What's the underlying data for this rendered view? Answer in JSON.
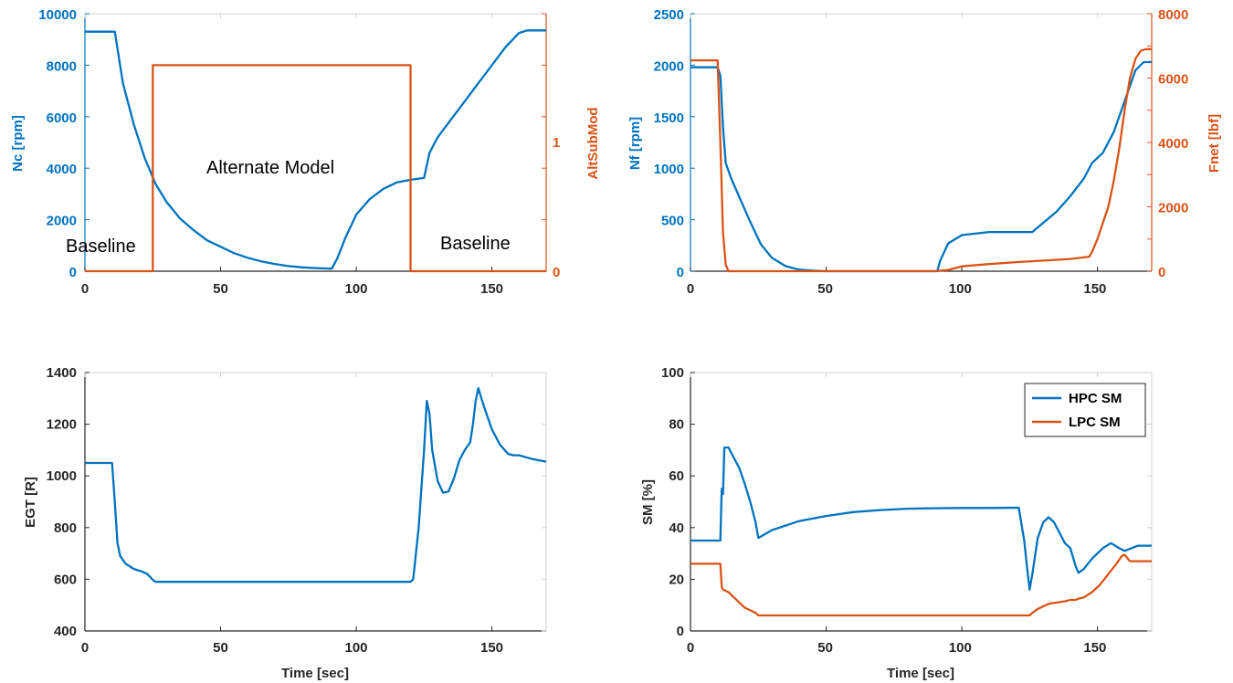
{
  "colors": {
    "blue": "#0072BD",
    "orange": "#D95319",
    "axis": "#262626",
    "box": "#D0D0D0"
  },
  "chart_data": [
    {
      "type": "line",
      "xlim": [
        0,
        170
      ],
      "xticks": [
        "0",
        "50",
        "100",
        "150"
      ],
      "ylim": [
        0,
        10000
      ],
      "yticks": [
        "0",
        "2000",
        "4000",
        "6000",
        "8000",
        "10000"
      ],
      "ylabel": "Nc [rpm]",
      "y2lim": [
        0,
        1.25
      ],
      "y2ticks": [
        "0",
        "1"
      ],
      "y2tick_values": [
        0,
        1
      ],
      "y2label": "AltSubMod",
      "xlabel": "",
      "annotations": [
        "Alternate Model",
        "Baseline",
        "Baseline"
      ],
      "series": [
        {
          "axis": "left",
          "color": "blue",
          "x": [
            0,
            11,
            14,
            18,
            22,
            26,
            30,
            35,
            40,
            45,
            50,
            55,
            60,
            65,
            70,
            75,
            80,
            85,
            91,
            93,
            96,
            100,
            105,
            110,
            115,
            120,
            125,
            127,
            130,
            135,
            140,
            145,
            150,
            155,
            160,
            163,
            166,
            170
          ],
          "y": [
            9300,
            9300,
            7300,
            5700,
            4400,
            3400,
            2700,
            2050,
            1600,
            1200,
            950,
            700,
            520,
            380,
            280,
            200,
            150,
            120,
            100,
            500,
            1300,
            2200,
            2800,
            3200,
            3450,
            3550,
            3620,
            4600,
            5200,
            5900,
            6600,
            7300,
            8000,
            8700,
            9250,
            9350,
            9350,
            9350
          ]
        },
        {
          "axis": "right",
          "color": "orange",
          "x": [
            0,
            25,
            25,
            120,
            120,
            170
          ],
          "y": [
            0,
            0,
            1,
            1,
            0,
            0
          ]
        }
      ]
    },
    {
      "type": "line",
      "xlim": [
        0,
        170
      ],
      "xticks": [
        "0",
        "50",
        "100",
        "150"
      ],
      "ylim": [
        0,
        2500
      ],
      "yticks": [
        "0",
        "500",
        "1000",
        "1500",
        "2000",
        "2500"
      ],
      "ylabel": "Nf [rpm]",
      "y2lim": [
        0,
        8000
      ],
      "y2ticks": [
        "0",
        "2000",
        "4000",
        "6000",
        "8000"
      ],
      "y2tick_values": [
        0,
        2000,
        4000,
        6000,
        8000
      ],
      "y2label": "Fnet [lbf]",
      "xlabel": "",
      "series": [
        {
          "axis": "left",
          "color": "blue",
          "x": [
            0,
            10,
            11,
            12,
            13,
            15,
            18,
            22,
            26,
            30,
            35,
            40,
            45,
            50,
            55,
            60,
            91,
            92,
            95,
            100,
            110,
            126,
            130,
            135,
            140,
            145,
            148,
            152,
            156,
            160,
            164,
            167,
            170
          ],
          "y": [
            1980,
            1980,
            1900,
            1400,
            1050,
            900,
            720,
            480,
            260,
            130,
            50,
            15,
            5,
            0,
            0,
            0,
            0,
            100,
            270,
            350,
            380,
            380,
            470,
            580,
            730,
            900,
            1050,
            1150,
            1350,
            1650,
            1950,
            2030,
            2030
          ]
        },
        {
          "axis": "right",
          "color": "orange",
          "x": [
            0,
            10,
            11,
            12,
            13,
            14,
            20,
            90,
            95,
            100,
            110,
            120,
            130,
            140,
            147,
            148,
            150,
            152,
            154,
            156,
            158,
            160,
            162,
            164,
            166,
            168,
            170
          ],
          "y": [
            6550,
            6550,
            4000,
            1200,
            200,
            0,
            0,
            0,
            40,
            150,
            220,
            280,
            330,
            380,
            450,
            600,
            1000,
            1500,
            2000,
            2800,
            3800,
            5000,
            6000,
            6600,
            6850,
            6900,
            6900
          ]
        }
      ]
    },
    {
      "type": "line",
      "xlim": [
        0,
        170
      ],
      "xticks": [
        "0",
        "50",
        "100",
        "150"
      ],
      "ylim": [
        400,
        1400
      ],
      "yticks": [
        "400",
        "600",
        "800",
        "1000",
        "1200",
        "1400"
      ],
      "ylabel": "EGT [R]",
      "xlabel": "Time [sec]",
      "series": [
        {
          "axis": "left",
          "color": "blue",
          "x": [
            0,
            10,
            11,
            12,
            13,
            15,
            18,
            21,
            23,
            25,
            26,
            60,
            120,
            121,
            123,
            125,
            126,
            127,
            128,
            130,
            132,
            134,
            136,
            138,
            140,
            142,
            143,
            144,
            145,
            147,
            150,
            153,
            156,
            158,
            160,
            165,
            170
          ],
          "y": [
            1050,
            1050,
            900,
            740,
            690,
            660,
            640,
            630,
            620,
            598,
            590,
            590,
            590,
            600,
            800,
            1100,
            1290,
            1240,
            1100,
            980,
            935,
            940,
            990,
            1060,
            1100,
            1130,
            1200,
            1290,
            1340,
            1270,
            1180,
            1120,
            1085,
            1080,
            1080,
            1065,
            1055
          ]
        }
      ]
    },
    {
      "type": "line",
      "xlim": [
        0,
        170
      ],
      "xticks": [
        "0",
        "50",
        "100",
        "150"
      ],
      "ylim": [
        0,
        100
      ],
      "yticks": [
        "0",
        "20",
        "40",
        "60",
        "80",
        "100"
      ],
      "ylabel": "SM [%]",
      "xlabel": "Time [sec]",
      "legend": [
        "HPC SM",
        "LPC SM"
      ],
      "legend_location": "top-right",
      "series": [
        {
          "axis": "left",
          "color": "blue",
          "name": "HPC SM",
          "x": [
            0,
            8,
            11,
            11.5,
            12,
            12.5,
            14,
            16,
            18,
            20,
            22,
            24,
            25,
            30,
            40,
            50,
            60,
            70,
            80,
            90,
            100,
            110,
            121,
            123,
            124,
            125,
            126,
            128,
            130,
            132,
            134,
            136,
            138,
            140,
            142,
            143,
            145,
            148,
            152,
            155,
            158,
            160,
            165,
            170
          ],
          "y": [
            35,
            35,
            35,
            55,
            53,
            71,
            71,
            67,
            63,
            57,
            50,
            42,
            36,
            39,
            42.5,
            44.5,
            46,
            46.8,
            47.3,
            47.5,
            47.6,
            47.6,
            47.7,
            35,
            25,
            16,
            22,
            36,
            42,
            44,
            42,
            38,
            34,
            32,
            25,
            22.5,
            24,
            28,
            32,
            34,
            32,
            31,
            33,
            33
          ]
        },
        {
          "axis": "left",
          "color": "orange",
          "name": "LPC SM",
          "x": [
            0,
            11,
            11.5,
            12,
            14,
            16,
            18,
            20,
            22,
            24,
            25,
            26,
            60,
            100,
            124,
            125,
            126,
            128,
            130,
            132,
            135,
            138,
            140,
            142,
            143,
            145,
            148,
            151,
            154,
            157,
            159,
            160,
            162,
            165,
            170
          ],
          "y": [
            26,
            26,
            17,
            16,
            15,
            13,
            11,
            9,
            8,
            7,
            6,
            6,
            6,
            6,
            6,
            6,
            7,
            8.5,
            9.5,
            10.5,
            11,
            11.5,
            12,
            12,
            12.5,
            13,
            15,
            18,
            22,
            26,
            29,
            29.5,
            27,
            27,
            27
          ]
        }
      ]
    }
  ]
}
